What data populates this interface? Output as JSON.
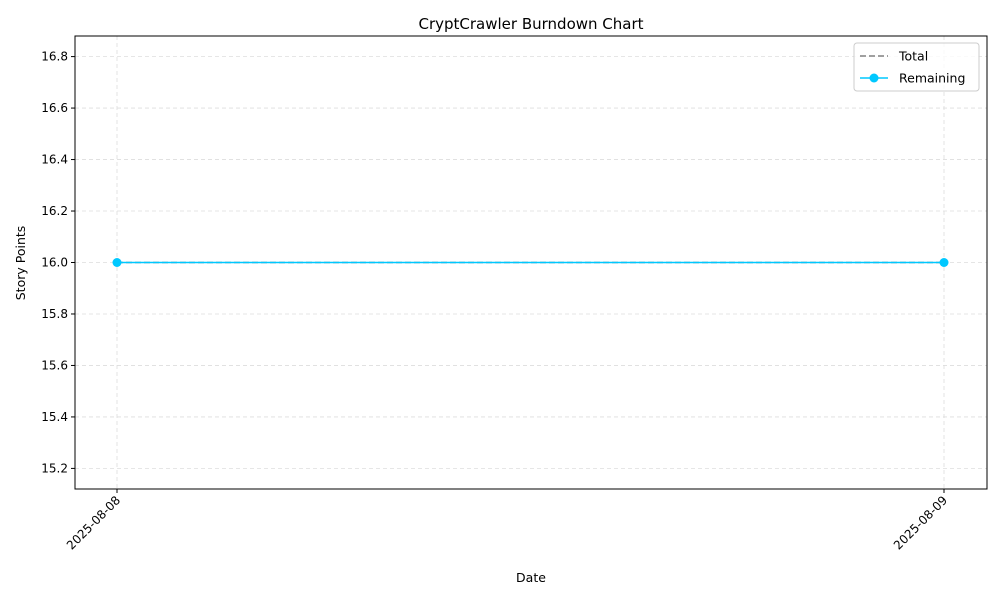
{
  "chart_data": {
    "type": "line",
    "title": "CryptCrawler Burndown Chart",
    "xlabel": "Date",
    "ylabel": "Story Points",
    "x": [
      "2025-08-08",
      "2025-08-09"
    ],
    "series": [
      {
        "name": "Total",
        "values": [
          16,
          16
        ],
        "color": "#808080",
        "style": "dashed",
        "marker": "none"
      },
      {
        "name": "Remaining",
        "values": [
          16,
          16
        ],
        "color": "#00c8ff",
        "style": "solid",
        "marker": "circle"
      }
    ],
    "ylim": [
      15.12,
      16.88
    ],
    "yticks": [
      "15.2",
      "15.4",
      "15.6",
      "15.8",
      "16.0",
      "16.2",
      "16.4",
      "16.6",
      "16.8"
    ],
    "grid": true,
    "legend_position": "top-right"
  }
}
